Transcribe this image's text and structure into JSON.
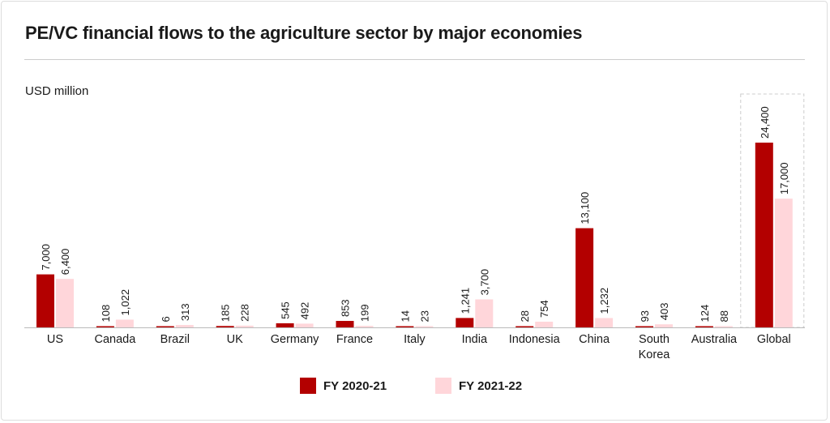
{
  "title": "PE/VC financial flows to the agriculture sector by major economies",
  "chart_data": {
    "type": "bar",
    "title": "PE/VC financial flows to the agriculture sector by major economies",
    "ylabel": "USD million",
    "xlabel": "",
    "ylim": [
      0,
      24400
    ],
    "grid": false,
    "legend_position": "bottom",
    "categories": [
      "US",
      "Canada",
      "Brazil",
      "UK",
      "Germany",
      "France",
      "Italy",
      "India",
      "Indonesia",
      "China",
      "South Korea",
      "Australia",
      "Global"
    ],
    "highlighted_category": "Global",
    "series": [
      {
        "name": "FY 2020-21",
        "color": "#b30000",
        "values": [
          7000,
          108,
          6,
          185,
          545,
          853,
          14,
          1241,
          28,
          13100,
          93,
          124,
          24400
        ],
        "labels": [
          "7,000",
          "108",
          "6",
          "185",
          "545",
          "853",
          "14",
          "1,241",
          "28",
          "13,100",
          "93",
          "124",
          "24,400"
        ]
      },
      {
        "name": "FY 2021-22",
        "color": "#ffd6da",
        "values": [
          6400,
          1022,
          313,
          228,
          492,
          199,
          23,
          3700,
          754,
          1232,
          403,
          88,
          17000
        ],
        "labels": [
          "6,400",
          "1,022",
          "313",
          "228",
          "492",
          "199",
          "23",
          "3,700",
          "754",
          "1,232",
          "403",
          "88",
          "17,000"
        ]
      }
    ]
  }
}
